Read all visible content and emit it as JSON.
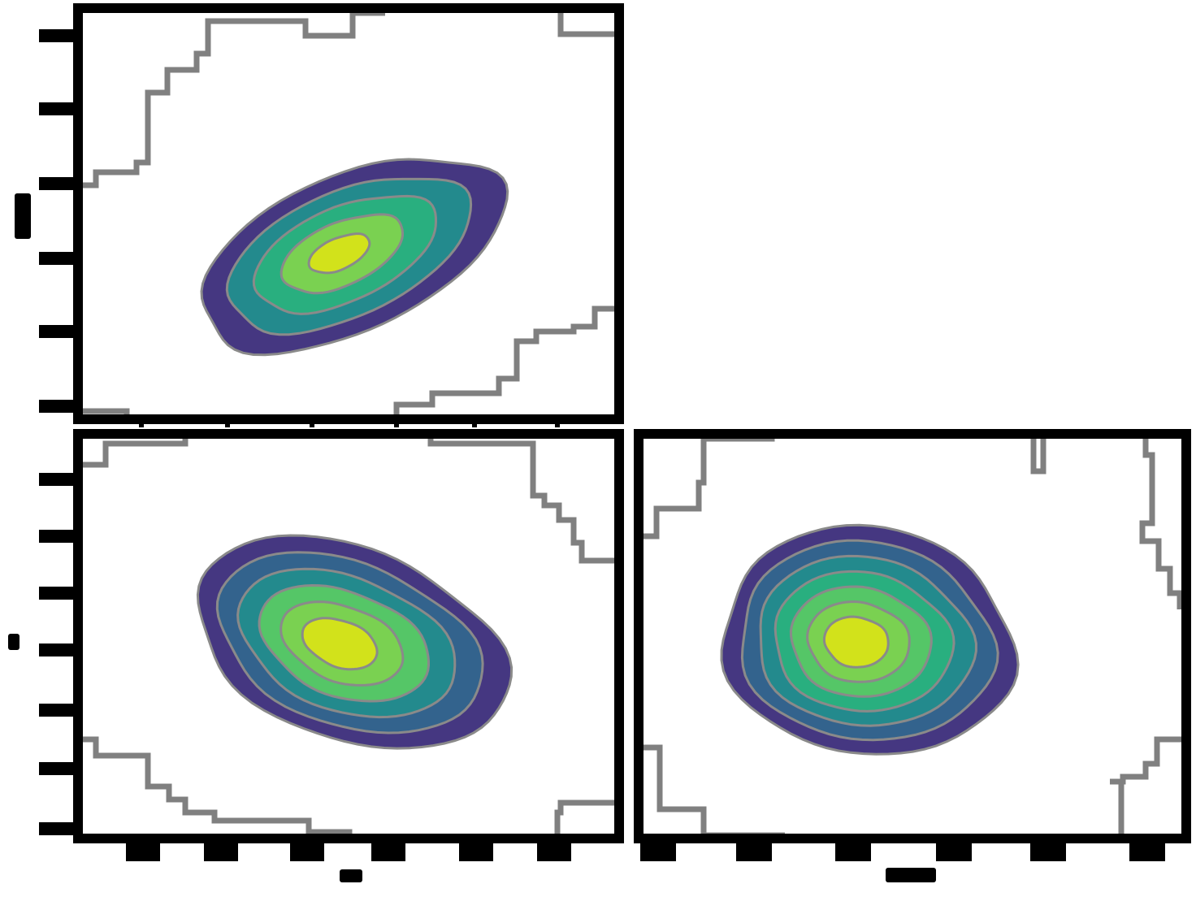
{
  "chart_data": {
    "type": "corner-kde-contour",
    "colormap": [
      "#453781",
      "#33638d",
      "#238a8d",
      "#29af7f",
      "#55c667",
      "#7ad151",
      "#d2e21b"
    ],
    "contour_line_color": "#808080",
    "panels": [
      {
        "id": "top-left",
        "type": "contour",
        "xlabel": "",
        "ylabel": "",
        "x_ticks": [
          "",
          "",
          "",
          "",
          "",
          ""
        ],
        "y_ticks": [
          "",
          "",
          "",
          "",
          "",
          ""
        ],
        "levels": 5
      },
      {
        "id": "bottom-left",
        "type": "contour",
        "xlabel": "",
        "ylabel": "",
        "x_ticks": [
          "",
          "",
          "",
          "",
          "",
          ""
        ],
        "y_ticks": [
          "",
          "",
          "",
          "",
          "",
          "",
          ""
        ],
        "levels": 6
      },
      {
        "id": "bottom-right",
        "type": "contour",
        "xlabel": "",
        "ylabel": "",
        "x_ticks": [
          "",
          "",
          "",
          "",
          "",
          ""
        ],
        "y_ticks": [
          "",
          "",
          "",
          "",
          "",
          "",
          ""
        ],
        "levels": 7
      }
    ]
  }
}
